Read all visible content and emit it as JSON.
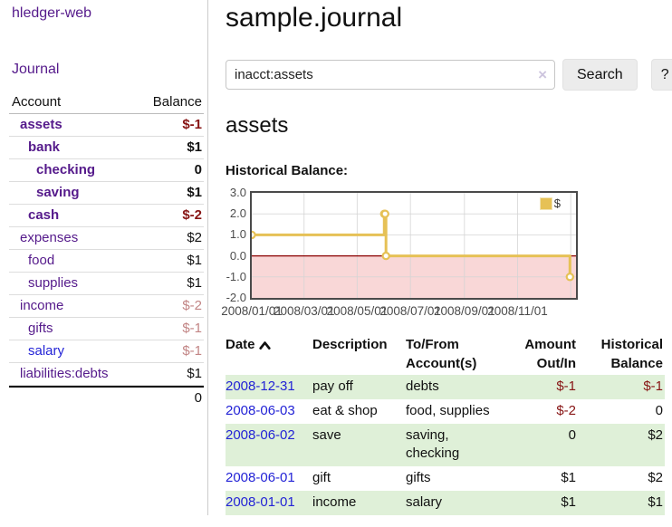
{
  "colors": {
    "link_purple": "#551a8b",
    "link_blue": "#2323d6",
    "negative": "#871414",
    "negative_muted": "#c28585",
    "row_highlight_green": "#dff0d8",
    "chart_series_gold": "#e6c156",
    "chart_negative_fill": "#f9d7d7",
    "chart_zero_line": "#8b0000",
    "chart_grid": "#d4d4d4"
  },
  "sidebar": {
    "brand": "hledger-web",
    "journal_link": "Journal",
    "accounts_table": {
      "headers": {
        "account": "Account",
        "balance": "Balance"
      },
      "rows": [
        {
          "account": "assets",
          "indent": 1,
          "balance": "$-1",
          "bold": true,
          "balance_style": "negative"
        },
        {
          "account": "bank",
          "indent": 2,
          "balance": "$1",
          "bold": true,
          "balance_style": "normal"
        },
        {
          "account": "checking",
          "indent": 3,
          "balance": "0",
          "bold": true,
          "balance_style": "normal"
        },
        {
          "account": "saving",
          "indent": 3,
          "balance": "$1",
          "bold": true,
          "balance_style": "normal"
        },
        {
          "account": "cash",
          "indent": 2,
          "balance": "$-2",
          "bold": true,
          "balance_style": "negative"
        },
        {
          "account": "expenses",
          "indent": 1,
          "balance": "$2",
          "bold": false,
          "balance_style": "normal"
        },
        {
          "account": "food",
          "indent": 2,
          "balance": "$1",
          "bold": false,
          "balance_style": "normal"
        },
        {
          "account": "supplies",
          "indent": 2,
          "balance": "$1",
          "bold": false,
          "balance_style": "normal"
        },
        {
          "account": "income",
          "indent": 1,
          "balance": "$-2",
          "bold": false,
          "balance_style": "negative-muted"
        },
        {
          "account": "gifts",
          "indent": 2,
          "balance": "$-1",
          "bold": false,
          "balance_style": "negative-muted"
        },
        {
          "account": "salary",
          "indent": 2,
          "balance": "$-1",
          "bold": false,
          "balance_style": "negative-muted",
          "link_color": "blue"
        },
        {
          "account": "liabilities:debts",
          "indent": 1,
          "balance": "$1",
          "bold": false,
          "balance_style": "normal"
        }
      ],
      "total": "0"
    }
  },
  "main": {
    "title": "sample.journal",
    "search": {
      "value": "inacct:assets",
      "clear_icon": "×",
      "button": "Search",
      "help_button": "?"
    },
    "account_heading": "assets",
    "chart_label": "Historical Balance:"
  },
  "chart_data": {
    "type": "line",
    "title": "Historical Balance",
    "step": true,
    "series": [
      {
        "name": "$",
        "x": [
          "2008-01-01",
          "2008-06-01",
          "2008-06-02",
          "2008-06-03",
          "2008-12-31"
        ],
        "y": [
          1,
          2,
          2,
          0,
          -1
        ]
      }
    ],
    "xlim": [
      "2008-01-01",
      "2009-01-07"
    ],
    "ylim": [
      -2,
      3
    ],
    "y_ticks": [
      {
        "value": 3,
        "label": "3.0"
      },
      {
        "value": 2,
        "label": "2.0"
      },
      {
        "value": 1,
        "label": "1.0"
      },
      {
        "value": 0,
        "label": "0.0"
      },
      {
        "value": -1,
        "label": "-1.0"
      },
      {
        "value": -2,
        "label": "-2.0"
      }
    ],
    "y_gridlines": [
      2,
      1,
      -1
    ],
    "x_gridlines": [
      "2008-03-01",
      "2008-05-01",
      "2008-07-01",
      "2008-09-01",
      "2008-11-01",
      "2009-01-01"
    ],
    "x_ticks": [
      {
        "date": "2008-01-01",
        "label": "2008/01/01"
      },
      {
        "date": "2008-03-01",
        "label": "2008/03/01"
      },
      {
        "date": "2008-05-01",
        "label": "2008/05/01"
      },
      {
        "date": "2008-07-01",
        "label": "2008/07/01"
      },
      {
        "date": "2008-09-01",
        "label": "2008/09/01"
      },
      {
        "date": "2008-11-01",
        "label": "2008/11/01"
      }
    ],
    "legend": {
      "label": "$",
      "position": "top-right"
    },
    "zero_line": true,
    "negative_region_shaded": true
  },
  "transactions": {
    "headers": {
      "date": "Date",
      "description": "Description",
      "accounts": "To/From Account(s)",
      "amount": "Amount Out/In",
      "balance": "Historical Balance"
    },
    "sort": "ascending",
    "rows": [
      {
        "date": "2008-12-31",
        "description": "pay off",
        "accounts": "debts",
        "amount": "$-1",
        "amount_negative": true,
        "balance": "$-1",
        "balance_negative": true,
        "highlight": true
      },
      {
        "date": "2008-06-03",
        "description": "eat & shop",
        "accounts": "food, supplies",
        "amount": "$-2",
        "amount_negative": true,
        "balance": "0",
        "balance_negative": false,
        "highlight": false
      },
      {
        "date": "2008-06-02",
        "description": "save",
        "accounts": "saving, checking",
        "amount": "0",
        "amount_negative": false,
        "balance": "$2",
        "balance_negative": false,
        "highlight": true
      },
      {
        "date": "2008-06-01",
        "description": "gift",
        "accounts": "gifts",
        "amount": "$1",
        "amount_negative": false,
        "balance": "$2",
        "balance_negative": false,
        "highlight": false
      },
      {
        "date": "2008-01-01",
        "description": "income",
        "accounts": "salary",
        "amount": "$1",
        "amount_negative": false,
        "balance": "$1",
        "balance_negative": false,
        "highlight": true
      }
    ]
  }
}
